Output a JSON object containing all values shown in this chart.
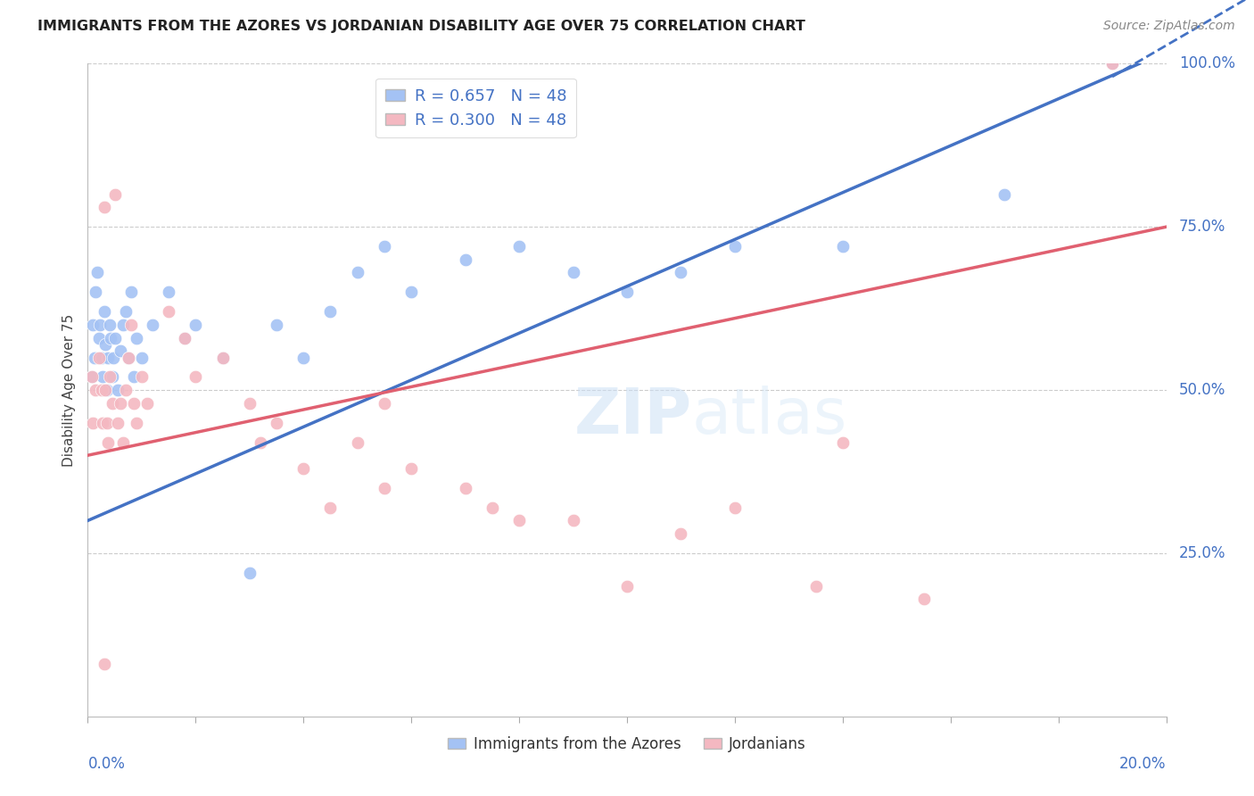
{
  "title": "IMMIGRANTS FROM THE AZORES VS JORDANIAN DISABILITY AGE OVER 75 CORRELATION CHART",
  "source": "Source: ZipAtlas.com",
  "ylabel": "Disability Age Over 75",
  "legend_label1": "Immigrants from the Azores",
  "legend_label2": "Jordanians",
  "R1": 0.657,
  "N1": 48,
  "R2": 0.3,
  "N2": 48,
  "color_blue": "#a4c2f4",
  "color_pink": "#f4b8c1",
  "color_blue_line": "#4472c4",
  "color_pink_line": "#e06070",
  "color_axis": "#4472c4",
  "xmin": 0.0,
  "xmax": 20.0,
  "ymin": 0.0,
  "ymax": 100.0,
  "ytick_labels": [
    "25.0%",
    "50.0%",
    "75.0%",
    "100.0%"
  ],
  "ytick_values": [
    25,
    50,
    75,
    100
  ],
  "blue_pts": [
    [
      0.08,
      52
    ],
    [
      0.1,
      60
    ],
    [
      0.12,
      55
    ],
    [
      0.15,
      65
    ],
    [
      0.18,
      68
    ],
    [
      0.2,
      58
    ],
    [
      0.22,
      60
    ],
    [
      0.25,
      55
    ],
    [
      0.28,
      52
    ],
    [
      0.3,
      62
    ],
    [
      0.32,
      57
    ],
    [
      0.35,
      50
    ],
    [
      0.38,
      55
    ],
    [
      0.4,
      60
    ],
    [
      0.42,
      58
    ],
    [
      0.45,
      52
    ],
    [
      0.48,
      55
    ],
    [
      0.5,
      58
    ],
    [
      0.55,
      50
    ],
    [
      0.6,
      56
    ],
    [
      0.65,
      60
    ],
    [
      0.7,
      62
    ],
    [
      0.75,
      55
    ],
    [
      0.8,
      65
    ],
    [
      0.85,
      52
    ],
    [
      0.9,
      58
    ],
    [
      1.0,
      55
    ],
    [
      1.2,
      60
    ],
    [
      1.5,
      65
    ],
    [
      1.8,
      58
    ],
    [
      2.0,
      60
    ],
    [
      2.5,
      55
    ],
    [
      3.0,
      22
    ],
    [
      3.5,
      60
    ],
    [
      4.5,
      62
    ],
    [
      5.0,
      68
    ],
    [
      5.5,
      72
    ],
    [
      6.0,
      65
    ],
    [
      7.0,
      70
    ],
    [
      8.0,
      72
    ],
    [
      9.0,
      68
    ],
    [
      10.0,
      65
    ],
    [
      11.0,
      68
    ],
    [
      12.0,
      72
    ],
    [
      14.0,
      72
    ],
    [
      17.0,
      80
    ],
    [
      19.0,
      100
    ],
    [
      4.0,
      55
    ]
  ],
  "pink_pts": [
    [
      0.08,
      52
    ],
    [
      0.1,
      45
    ],
    [
      0.15,
      50
    ],
    [
      0.2,
      55
    ],
    [
      0.25,
      50
    ],
    [
      0.28,
      45
    ],
    [
      0.3,
      78
    ],
    [
      0.32,
      50
    ],
    [
      0.35,
      45
    ],
    [
      0.38,
      42
    ],
    [
      0.4,
      52
    ],
    [
      0.45,
      48
    ],
    [
      0.5,
      80
    ],
    [
      0.55,
      45
    ],
    [
      0.6,
      48
    ],
    [
      0.65,
      42
    ],
    [
      0.7,
      50
    ],
    [
      0.75,
      55
    ],
    [
      0.8,
      60
    ],
    [
      0.85,
      48
    ],
    [
      0.9,
      45
    ],
    [
      1.0,
      52
    ],
    [
      1.1,
      48
    ],
    [
      1.5,
      62
    ],
    [
      1.8,
      58
    ],
    [
      2.0,
      52
    ],
    [
      2.5,
      55
    ],
    [
      3.0,
      48
    ],
    [
      3.2,
      42
    ],
    [
      3.5,
      45
    ],
    [
      4.0,
      38
    ],
    [
      4.5,
      32
    ],
    [
      5.0,
      42
    ],
    [
      5.5,
      48
    ],
    [
      6.0,
      38
    ],
    [
      7.0,
      35
    ],
    [
      7.5,
      32
    ],
    [
      8.0,
      30
    ],
    [
      9.0,
      30
    ],
    [
      10.0,
      20
    ],
    [
      11.0,
      28
    ],
    [
      12.0,
      32
    ],
    [
      13.5,
      20
    ],
    [
      14.0,
      42
    ],
    [
      15.5,
      18
    ],
    [
      0.3,
      8
    ],
    [
      19.0,
      100
    ],
    [
      5.5,
      35
    ]
  ],
  "blue_line_x0": 0.0,
  "blue_line_y0": 30.0,
  "blue_line_x1": 19.5,
  "blue_line_y1": 100.0,
  "pink_line_x0": 0.0,
  "pink_line_y0": 40.0,
  "pink_line_x1": 20.0,
  "pink_line_y1": 75.0
}
